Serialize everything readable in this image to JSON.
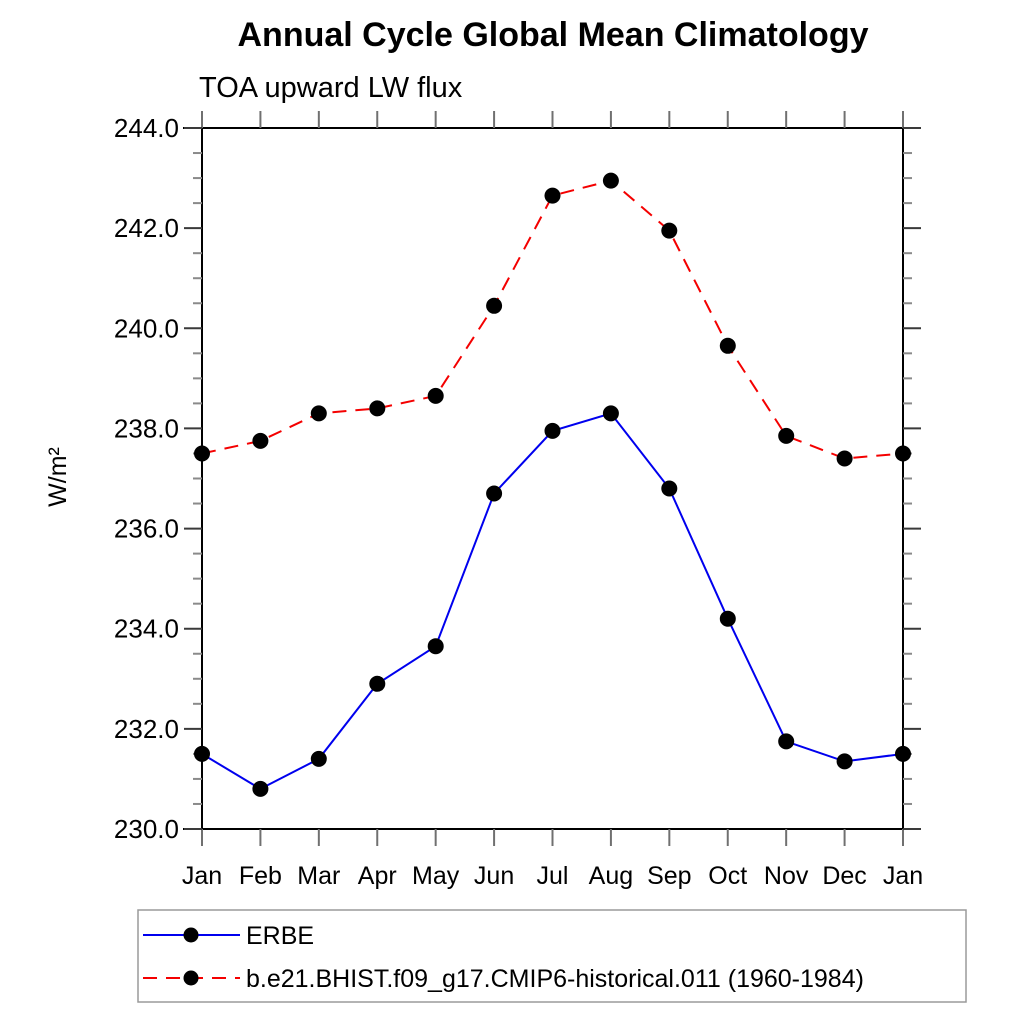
{
  "page": {
    "background": "#ffffff"
  },
  "chart_data": {
    "type": "line",
    "title": "Annual Cycle Global Mean Climatology",
    "subtitle": "TOA upward LW flux",
    "ylabel": "W/m²",
    "xlabel": "",
    "categories": [
      "Jan",
      "Feb",
      "Mar",
      "Apr",
      "May",
      "Jun",
      "Jul",
      "Aug",
      "Sep",
      "Oct",
      "Nov",
      "Dec",
      "Jan"
    ],
    "ylim": [
      230.0,
      244.0
    ],
    "y_major_step": 2.0,
    "y_minor_step": 0.5,
    "y_tick_labels": [
      "230.0",
      "232.0",
      "234.0",
      "236.0",
      "238.0",
      "240.0",
      "242.0",
      "244.0"
    ],
    "grid": false,
    "legend_position": "bottom-left-box",
    "marker": "filled-circle",
    "marker_color": "#000000",
    "axis_color": "#000000",
    "tick_color": "#707070",
    "series": [
      {
        "name": "ERBE",
        "color": "#0000ee",
        "style": "solid",
        "values": [
          231.5,
          230.8,
          231.4,
          232.9,
          233.65,
          236.7,
          237.95,
          238.3,
          236.8,
          234.2,
          231.75,
          231.35,
          231.5
        ]
      },
      {
        "name": "b.e21.BHIST.f09_g17.CMIP6-historical.011 (1960-1984)",
        "color": "#f40000",
        "style": "dashed",
        "values": [
          237.5,
          237.75,
          238.3,
          238.4,
          238.65,
          240.45,
          242.65,
          242.95,
          241.95,
          239.65,
          237.85,
          237.4,
          237.5
        ]
      }
    ]
  }
}
